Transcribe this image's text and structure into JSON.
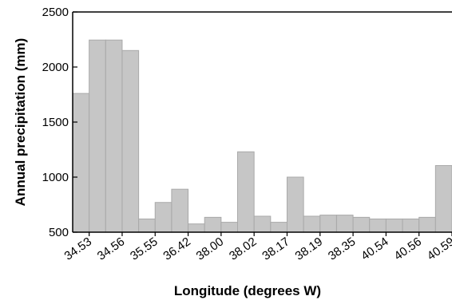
{
  "chart_data": {
    "type": "bar",
    "title": "",
    "xlabel": "Longitude (degrees W)",
    "ylabel": "Annual precipitation (mm)",
    "ylim": [
      500,
      2500
    ],
    "yticks": [
      500,
      1000,
      1500,
      2000,
      2500
    ],
    "x_tick_labels": [
      "34.53",
      "34.56",
      "35.55",
      "36.42",
      "38.00",
      "38.02",
      "38.17",
      "38.19",
      "38.35",
      "40.54",
      "40.56",
      "40.59"
    ],
    "values": [
      1760,
      2245,
      2245,
      2150,
      620,
      770,
      890,
      575,
      635,
      590,
      1230,
      645,
      590,
      1000,
      645,
      655,
      655,
      635,
      620,
      620,
      620,
      635,
      1105
    ],
    "bar_color": "#c6c6c6",
    "bar_edge_color": "#a9a9a9",
    "grid": false
  }
}
